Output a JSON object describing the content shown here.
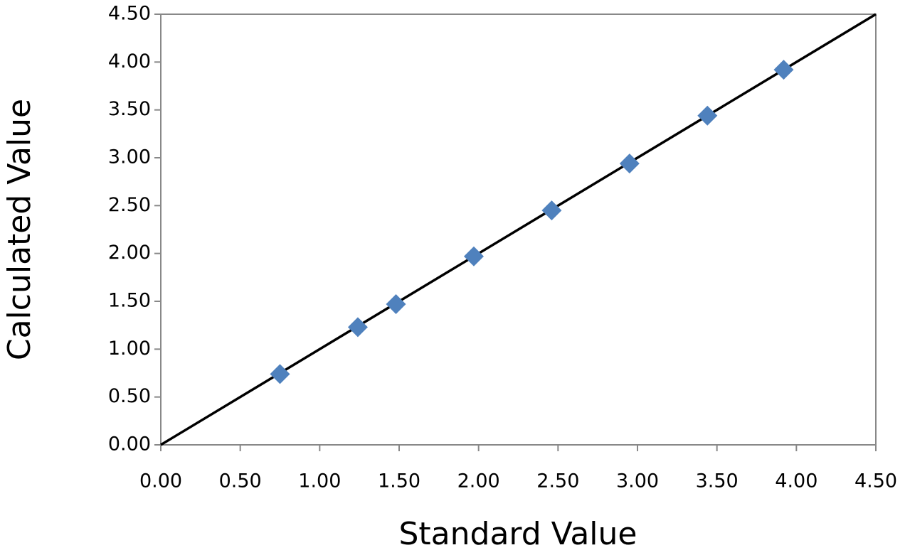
{
  "chart_data": {
    "type": "scatter",
    "x_label": "Standard Value",
    "y_label": "Calculated Value",
    "series": [
      {
        "color": "#4f81bd",
        "x": [
          0.75,
          1.24,
          1.48,
          1.97,
          2.46,
          2.95,
          3.44,
          3.92
        ],
        "values": [
          0.74,
          1.23,
          1.47,
          1.97,
          2.45,
          2.94,
          3.44,
          3.92
        ]
      }
    ],
    "reference_line": {
      "color": "#000000",
      "x": [
        0,
        4.5
      ],
      "y": [
        0,
        4.5
      ]
    },
    "xlim": [
      0,
      4.5
    ],
    "ylim": [
      0,
      4.5
    ],
    "xticks": [
      {
        "value": 0,
        "label": "0.00"
      },
      {
        "value": 0.5,
        "label": "0.50"
      },
      {
        "value": 1,
        "label": "1.00"
      },
      {
        "value": 1.5,
        "label": "1.50"
      },
      {
        "value": 2,
        "label": "2.00"
      },
      {
        "value": 2.5,
        "label": "2.50"
      },
      {
        "value": 3,
        "label": "3.00"
      },
      {
        "value": 3.5,
        "label": "3.50"
      },
      {
        "value": 4,
        "label": "4.00"
      },
      {
        "value": 4.5,
        "label": "4.50"
      }
    ],
    "yticks": [
      {
        "value": 0,
        "label": "0.00"
      },
      {
        "value": 0.5,
        "label": "0.50"
      },
      {
        "value": 1,
        "label": "1.00"
      },
      {
        "value": 1.5,
        "label": "1.50"
      },
      {
        "value": 2,
        "label": "2.00"
      },
      {
        "value": 2.5,
        "label": "2.50"
      },
      {
        "value": 3,
        "label": "3.00"
      },
      {
        "value": 3.5,
        "label": "3.50"
      },
      {
        "value": 4,
        "label": "4.00"
      },
      {
        "value": 4.5,
        "label": "4.50"
      }
    ],
    "grid": false
  }
}
